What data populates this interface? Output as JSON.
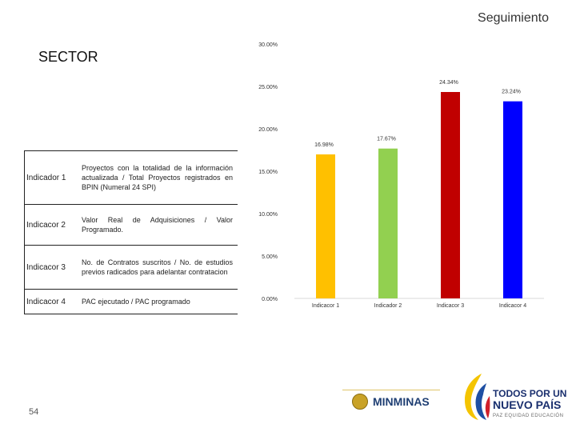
{
  "header": {
    "title": "Seguimiento"
  },
  "section": {
    "label": "SECTOR"
  },
  "indicators": [
    {
      "name": "Indicador 1",
      "description": "Proyectos con la totalidad de la información actualizada / Total Proyectos registrados en BPIN (Numeral 24 SPI)"
    },
    {
      "name": "Indicacor 2",
      "description": "Valor Real de Adquisiciones / Valor Programado."
    },
    {
      "name": "Indicacor 3",
      "description": "No. de Contratos suscritos / No. de estudios previos radicados para adelantar contratacion"
    },
    {
      "name": "Indicacor 4",
      "description": "PAC ejecutado / PAC programado"
    }
  ],
  "chart_data": {
    "type": "bar",
    "title": "",
    "xlabel": "",
    "ylabel": "",
    "categories": [
      "Indicacor 1",
      "Indicador 2",
      "Indicacor 3",
      "Indicacor 4"
    ],
    "values": [
      16.98,
      17.67,
      24.34,
      23.24
    ],
    "value_labels": [
      "16.98%",
      "17.67%",
      "24.34%",
      "23.24%"
    ],
    "colors": [
      "#ffc000",
      "#92d050",
      "#c00000",
      "#0000ff"
    ],
    "ylim": [
      0,
      30
    ],
    "yticks": [
      0,
      5,
      10,
      15,
      20,
      25,
      30
    ],
    "ytick_labels": [
      "0.00%",
      "5.00%",
      "10.00%",
      "15.00%",
      "20.00%",
      "25.00%",
      "30.00%"
    ],
    "grid": false,
    "legend": "none"
  },
  "footer": {
    "page_number": "54",
    "logo_minminas": "MINMINAS",
    "logo_todos": "TODOS POR UN",
    "logo_nuevo": "NUEVO PAÍS",
    "logo_slogan": "PAZ  EQUIDAD  EDUCACIÓN"
  }
}
